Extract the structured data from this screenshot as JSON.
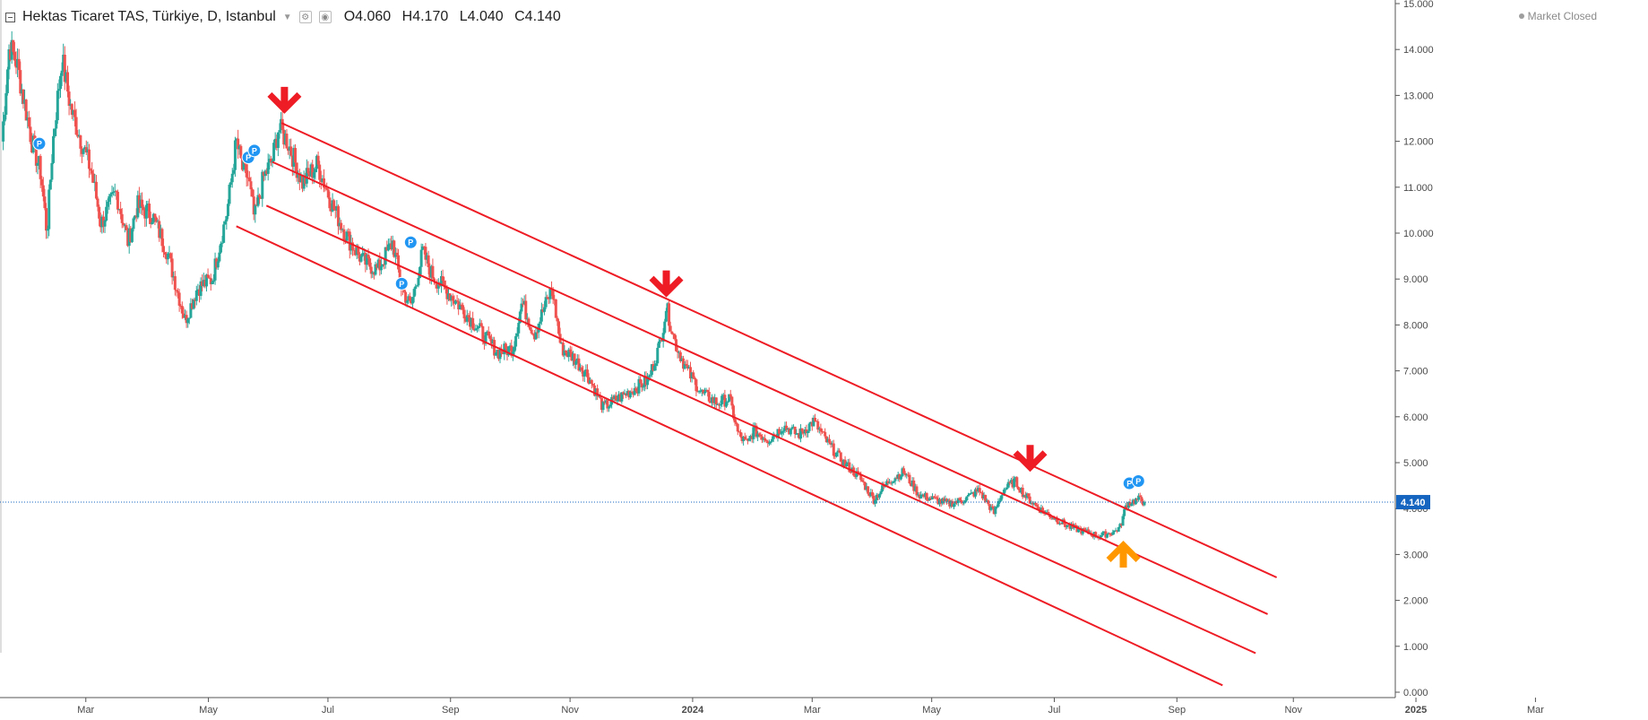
{
  "header": {
    "symbol": "Hektas Ticaret TAS, Türkiye, D, Istanbul",
    "open_label": "O",
    "open": "4.060",
    "high_label": "H",
    "high": "4.170",
    "low_label": "L",
    "low": "4.040",
    "close_label": "C",
    "close": "4.140"
  },
  "status": {
    "market": "Market Closed"
  },
  "colors": {
    "up": "#26a69a",
    "down": "#ef5350",
    "channel": "#ee1c25",
    "arrow_down": "#ee1c25",
    "arrow_up": "#ff9800",
    "last_price_line": "#1565c0",
    "marker": "#2196f3"
  },
  "icons": [
    "collapse-icon",
    "chevron-down-icon",
    "settings-icon",
    "eye-icon",
    "market-status-dot-icon",
    "arrow-down-icon",
    "arrow-up-icon",
    "dividend-marker-icon"
  ],
  "chart_data": {
    "type": "candlestick",
    "title": "Hektas Ticaret TAS, Türkiye, D, Istanbul",
    "ylim": [
      0,
      15
    ],
    "y_ticks": [
      "0.000",
      "1.000",
      "2.000",
      "3.000",
      "4.000",
      "5.000",
      "6.000",
      "7.000",
      "8.000",
      "9.000",
      "10.000",
      "11.000",
      "12.000",
      "13.000",
      "14.000",
      "15.000"
    ],
    "x_ticks": [
      "Mar",
      "May",
      "Jul",
      "Sep",
      "Nov",
      "2024",
      "Mar",
      "May",
      "Jul",
      "Sep",
      "Nov",
      "2025",
      "Mar"
    ],
    "last_price": "4.140",
    "price_path": [
      {
        "x": 0,
        "y": 12.0
      },
      {
        "x": 0.25,
        "y": 14.1
      },
      {
        "x": 0.5,
        "y": 13.7
      },
      {
        "x": 1.0,
        "y": 12.0
      },
      {
        "x": 1.3,
        "y": 11.3
      },
      {
        "x": 1.5,
        "y": 10.0
      },
      {
        "x": 1.7,
        "y": 12.0
      },
      {
        "x": 2.0,
        "y": 13.8
      },
      {
        "x": 2.3,
        "y": 12.7
      },
      {
        "x": 3.0,
        "y": 11.3
      },
      {
        "x": 3.3,
        "y": 10.2
      },
      {
        "x": 3.8,
        "y": 10.9
      },
      {
        "x": 4.2,
        "y": 9.8
      },
      {
        "x": 4.5,
        "y": 10.6
      },
      {
        "x": 5.0,
        "y": 10.4
      },
      {
        "x": 5.5,
        "y": 9.6
      },
      {
        "x": 6.1,
        "y": 8.1
      },
      {
        "x": 6.5,
        "y": 8.8
      },
      {
        "x": 7.0,
        "y": 9.0
      },
      {
        "x": 7.5,
        "y": 10.5
      },
      {
        "x": 7.8,
        "y": 12.0
      },
      {
        "x": 8.0,
        "y": 11.4
      },
      {
        "x": 8.2,
        "y": 11.2
      },
      {
        "x": 8.4,
        "y": 10.3
      },
      {
        "x": 8.7,
        "y": 11.2
      },
      {
        "x": 9.0,
        "y": 11.6
      },
      {
        "x": 9.2,
        "y": 12.3
      },
      {
        "x": 9.5,
        "y": 12.0
      },
      {
        "x": 10.0,
        "y": 11.1
      },
      {
        "x": 10.5,
        "y": 11.5
      },
      {
        "x": 11.0,
        "y": 10.6
      },
      {
        "x": 11.5,
        "y": 9.9
      },
      {
        "x": 12.0,
        "y": 9.4
      },
      {
        "x": 12.5,
        "y": 9.2
      },
      {
        "x": 13.0,
        "y": 9.8
      },
      {
        "x": 13.3,
        "y": 8.8
      },
      {
        "x": 13.6,
        "y": 8.4
      },
      {
        "x": 14.0,
        "y": 9.6
      },
      {
        "x": 14.3,
        "y": 9.1
      },
      {
        "x": 15.0,
        "y": 8.6
      },
      {
        "x": 16.0,
        "y": 7.8
      },
      {
        "x": 16.5,
        "y": 7.4
      },
      {
        "x": 17.0,
        "y": 7.5
      },
      {
        "x": 17.3,
        "y": 8.5
      },
      {
        "x": 17.7,
        "y": 7.8
      },
      {
        "x": 18.3,
        "y": 8.8
      },
      {
        "x": 18.6,
        "y": 7.5
      },
      {
        "x": 19.0,
        "y": 7.3
      },
      {
        "x": 19.5,
        "y": 6.9
      },
      {
        "x": 20.0,
        "y": 6.2
      },
      {
        "x": 20.5,
        "y": 6.4
      },
      {
        "x": 21.0,
        "y": 6.6
      },
      {
        "x": 21.5,
        "y": 6.8
      },
      {
        "x": 21.9,
        "y": 7.6
      },
      {
        "x": 22.1,
        "y": 8.4
      },
      {
        "x": 22.4,
        "y": 7.6
      },
      {
        "x": 22.8,
        "y": 7.0
      },
      {
        "x": 23.3,
        "y": 6.5
      },
      {
        "x": 23.8,
        "y": 6.3
      },
      {
        "x": 24.2,
        "y": 6.4
      },
      {
        "x": 24.5,
        "y": 5.6
      },
      {
        "x": 24.8,
        "y": 5.4
      },
      {
        "x": 25.0,
        "y": 5.7
      },
      {
        "x": 25.5,
        "y": 5.5
      },
      {
        "x": 26.0,
        "y": 5.8
      },
      {
        "x": 26.5,
        "y": 5.6
      },
      {
        "x": 27.0,
        "y": 5.9
      },
      {
        "x": 27.5,
        "y": 5.4
      },
      {
        "x": 28.0,
        "y": 5.0
      },
      {
        "x": 28.5,
        "y": 4.7
      },
      {
        "x": 29.0,
        "y": 4.2
      },
      {
        "x": 29.5,
        "y": 4.6
      },
      {
        "x": 30.0,
        "y": 4.8
      },
      {
        "x": 30.5,
        "y": 4.3
      },
      {
        "x": 31.0,
        "y": 4.2
      },
      {
        "x": 31.5,
        "y": 4.1
      },
      {
        "x": 32.0,
        "y": 4.2
      },
      {
        "x": 32.5,
        "y": 4.4
      },
      {
        "x": 33.0,
        "y": 3.9
      },
      {
        "x": 33.3,
        "y": 4.4
      },
      {
        "x": 33.7,
        "y": 4.6
      },
      {
        "x": 34.0,
        "y": 4.3
      },
      {
        "x": 34.5,
        "y": 4.0
      },
      {
        "x": 35.0,
        "y": 3.8
      },
      {
        "x": 35.5,
        "y": 3.6
      },
      {
        "x": 36.0,
        "y": 3.5
      },
      {
        "x": 36.5,
        "y": 3.4
      },
      {
        "x": 37.0,
        "y": 3.5
      },
      {
        "x": 37.2,
        "y": 3.6
      },
      {
        "x": 37.4,
        "y": 4.1
      },
      {
        "x": 37.8,
        "y": 4.2
      },
      {
        "x": 38.0,
        "y": 4.14
      }
    ],
    "channel_lines": [
      {
        "x1": 9.3,
        "y1": 12.4,
        "x2": 42.4,
        "y2": 2.5
      },
      {
        "x1": 9.0,
        "y1": 11.55,
        "x2": 42.1,
        "y2": 1.7
      },
      {
        "x1": 8.8,
        "y1": 10.6,
        "x2": 41.7,
        "y2": 0.85
      },
      {
        "x1": 7.8,
        "y1": 10.15,
        "x2": 40.6,
        "y2": 0.15
      }
    ],
    "annotations": [
      {
        "kind": "arrow-down",
        "x": 9.4,
        "y": 12.6
      },
      {
        "kind": "arrow-down",
        "x": 22.1,
        "y": 8.6
      },
      {
        "kind": "arrow-down",
        "x": 34.2,
        "y": 4.8
      },
      {
        "kind": "arrow-up",
        "x": 37.3,
        "y": 3.3
      }
    ],
    "markers": [
      {
        "label": "P",
        "x": 1.25,
        "y": 11.95
      },
      {
        "label": "P",
        "x": 8.2,
        "y": 11.65
      },
      {
        "label": "P",
        "x": 8.4,
        "y": 11.8
      },
      {
        "label": "P",
        "x": 13.3,
        "y": 8.9
      },
      {
        "label": "P",
        "x": 13.6,
        "y": 9.8
      },
      {
        "label": "P",
        "x": 37.5,
        "y": 4.55
      },
      {
        "label": "P",
        "x": 37.8,
        "y": 4.6
      }
    ]
  }
}
